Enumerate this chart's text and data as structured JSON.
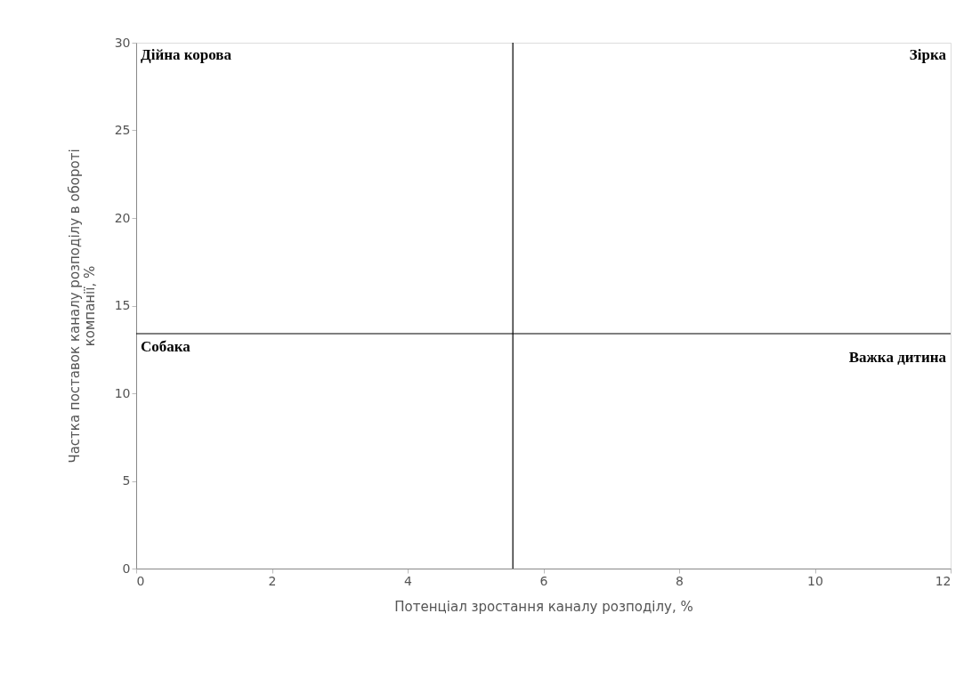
{
  "chart_data": {
    "type": "scatter",
    "xlabel": "Потенціал зростання каналу розподілу, %",
    "ylabel": "Частка поставок каналу розподілу в обороті компанії, %",
    "xlim": [
      0,
      12
    ],
    "xticks": [
      0,
      2,
      4,
      6,
      8,
      10,
      12
    ],
    "ylim": [
      0,
      30
    ],
    "yticks": [
      0,
      5,
      10,
      15,
      20,
      25,
      30
    ],
    "grid": false,
    "ref_lines": [
      {
        "axis": "x",
        "value": 5.55,
        "color": "#000000"
      },
      {
        "axis": "y",
        "value": 13.4,
        "color": "#000000"
      }
    ],
    "annotations": [
      "Дійна корова",
      "Зірка",
      "Собака",
      "Важка дитина"
    ]
  }
}
